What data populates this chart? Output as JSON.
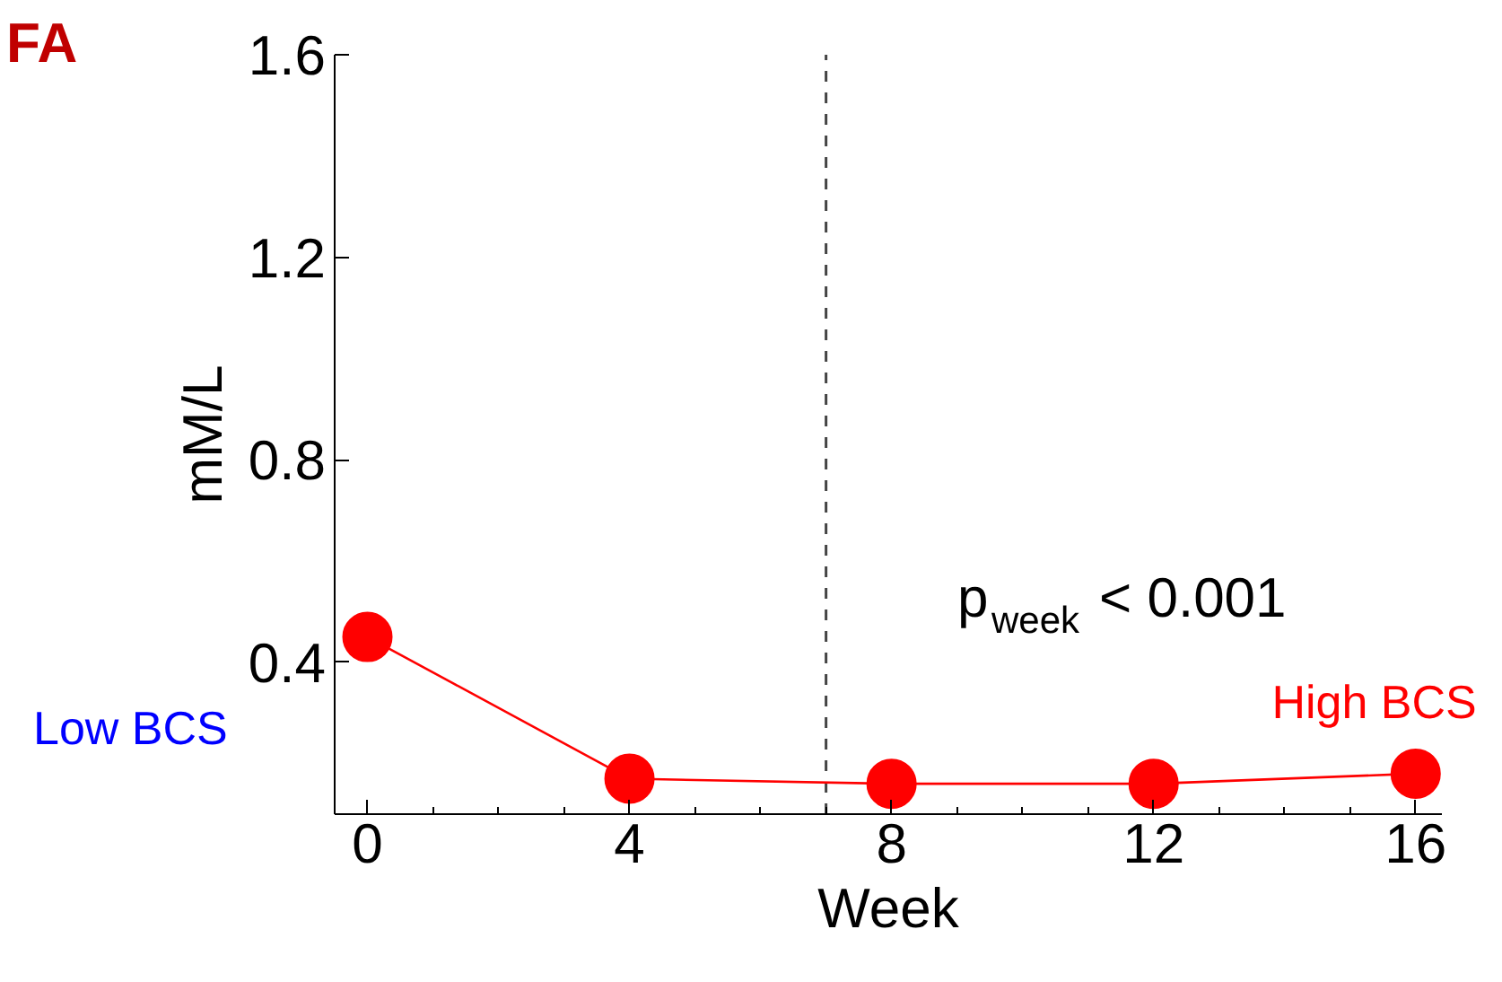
{
  "chart_data": {
    "type": "line",
    "title": "FA",
    "xlabel": "Week",
    "ylabel": "mM/L",
    "series": [
      {
        "name": "High BCS",
        "color": "#ff0000",
        "x": [
          0,
          4,
          8,
          12,
          16
        ],
        "values": [
          0.45,
          0.17,
          0.16,
          0.16,
          0.18
        ]
      }
    ],
    "xlim": [
      -0.5,
      16.4
    ],
    "xticks": [
      0,
      4,
      8,
      12,
      16
    ],
    "ylim": [
      0.1,
      1.6
    ],
    "yticks": [
      0.4,
      0.8,
      1.2,
      1.6
    ],
    "ref_lines": [
      {
        "axis": "x",
        "value": 7,
        "label": null,
        "color": "#444444",
        "line_style": "dashed"
      }
    ],
    "annotations": [
      "Low BCS",
      "p$_{week}$ < 0.001"
    ],
    "marker": "circle",
    "line_style": "solid",
    "grid": false
  }
}
